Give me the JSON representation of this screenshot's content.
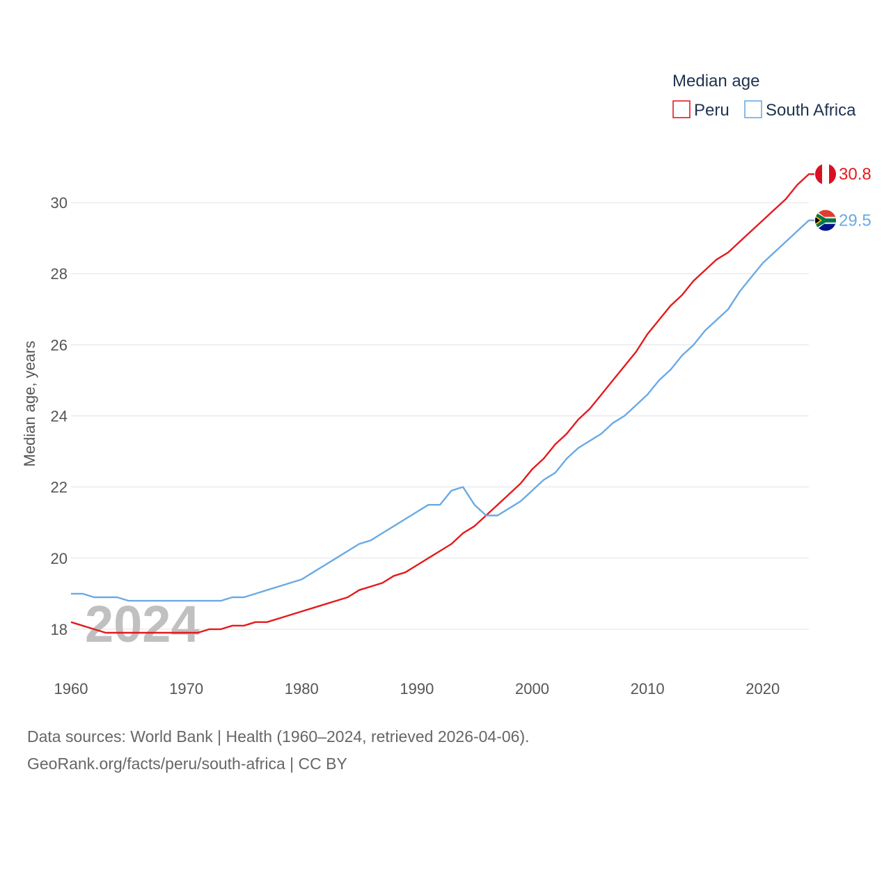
{
  "chart_data": {
    "type": "line",
    "title": "",
    "xlabel": "",
    "ylabel": "Median age, years",
    "xlim": [
      1960,
      2024
    ],
    "ylim": [
      17,
      31
    ],
    "xticks": [
      1960,
      1970,
      1980,
      1990,
      2000,
      2010,
      2020
    ],
    "yticks": [
      18,
      20,
      22,
      24,
      26,
      28,
      30
    ],
    "grid": true,
    "watermark_year": "2024",
    "legend": {
      "title": "Median age",
      "position": "top-right",
      "entries": [
        "Peru",
        "South Africa"
      ]
    },
    "series": [
      {
        "name": "Peru",
        "color": "#e41a1c",
        "end_label": "30.8",
        "flag": "peru-flag",
        "x": [
          1960,
          1961,
          1962,
          1963,
          1964,
          1965,
          1966,
          1967,
          1968,
          1969,
          1970,
          1971,
          1972,
          1973,
          1974,
          1975,
          1976,
          1977,
          1978,
          1979,
          1980,
          1981,
          1982,
          1983,
          1984,
          1985,
          1986,
          1987,
          1988,
          1989,
          1990,
          1991,
          1992,
          1993,
          1994,
          1995,
          1996,
          1997,
          1998,
          1999,
          2000,
          2001,
          2002,
          2003,
          2004,
          2005,
          2006,
          2007,
          2008,
          2009,
          2010,
          2011,
          2012,
          2013,
          2014,
          2015,
          2016,
          2017,
          2018,
          2019,
          2020,
          2021,
          2022,
          2023,
          2024
        ],
        "values": [
          18.2,
          18.1,
          18.0,
          17.9,
          17.9,
          17.9,
          17.9,
          17.9,
          17.9,
          17.9,
          17.9,
          17.9,
          18.0,
          18.0,
          18.1,
          18.1,
          18.2,
          18.2,
          18.3,
          18.4,
          18.5,
          18.6,
          18.7,
          18.8,
          18.9,
          19.1,
          19.2,
          19.3,
          19.5,
          19.6,
          19.8,
          20.0,
          20.2,
          20.4,
          20.7,
          20.9,
          21.2,
          21.5,
          21.8,
          22.1,
          22.5,
          22.8,
          23.2,
          23.5,
          23.9,
          24.2,
          24.6,
          25.0,
          25.4,
          25.8,
          26.3,
          26.7,
          27.1,
          27.4,
          27.8,
          28.1,
          28.4,
          28.6,
          28.9,
          29.2,
          29.5,
          29.8,
          30.1,
          30.5,
          30.8
        ]
      },
      {
        "name": "South Africa",
        "color": "#6aaae4",
        "end_label": "29.5",
        "flag": "south-africa-flag",
        "x": [
          1960,
          1961,
          1962,
          1963,
          1964,
          1965,
          1966,
          1967,
          1968,
          1969,
          1970,
          1971,
          1972,
          1973,
          1974,
          1975,
          1976,
          1977,
          1978,
          1979,
          1980,
          1981,
          1982,
          1983,
          1984,
          1985,
          1986,
          1987,
          1988,
          1989,
          1990,
          1991,
          1992,
          1993,
          1994,
          1995,
          1996,
          1997,
          1998,
          1999,
          2000,
          2001,
          2002,
          2003,
          2004,
          2005,
          2006,
          2007,
          2008,
          2009,
          2010,
          2011,
          2012,
          2013,
          2014,
          2015,
          2016,
          2017,
          2018,
          2019,
          2020,
          2021,
          2022,
          2023,
          2024
        ],
        "values": [
          19.0,
          19.0,
          18.9,
          18.9,
          18.9,
          18.8,
          18.8,
          18.8,
          18.8,
          18.8,
          18.8,
          18.8,
          18.8,
          18.8,
          18.9,
          18.9,
          19.0,
          19.1,
          19.2,
          19.3,
          19.4,
          19.6,
          19.8,
          20.0,
          20.2,
          20.4,
          20.5,
          20.7,
          20.9,
          21.1,
          21.3,
          21.5,
          21.5,
          21.9,
          22.0,
          21.5,
          21.2,
          21.2,
          21.4,
          21.6,
          21.9,
          22.2,
          22.4,
          22.8,
          23.1,
          23.3,
          23.5,
          23.8,
          24.0,
          24.3,
          24.6,
          25.0,
          25.3,
          25.7,
          26.0,
          26.4,
          26.7,
          27.0,
          27.5,
          27.9,
          28.3,
          28.6,
          28.9,
          29.2,
          29.5
        ]
      }
    ]
  },
  "footer": {
    "line1": "Data sources: World Bank | Health (1960–2024, retrieved 2026-04-06).",
    "line2": "GeoRank.org/facts/peru/south-africa | CC BY"
  }
}
